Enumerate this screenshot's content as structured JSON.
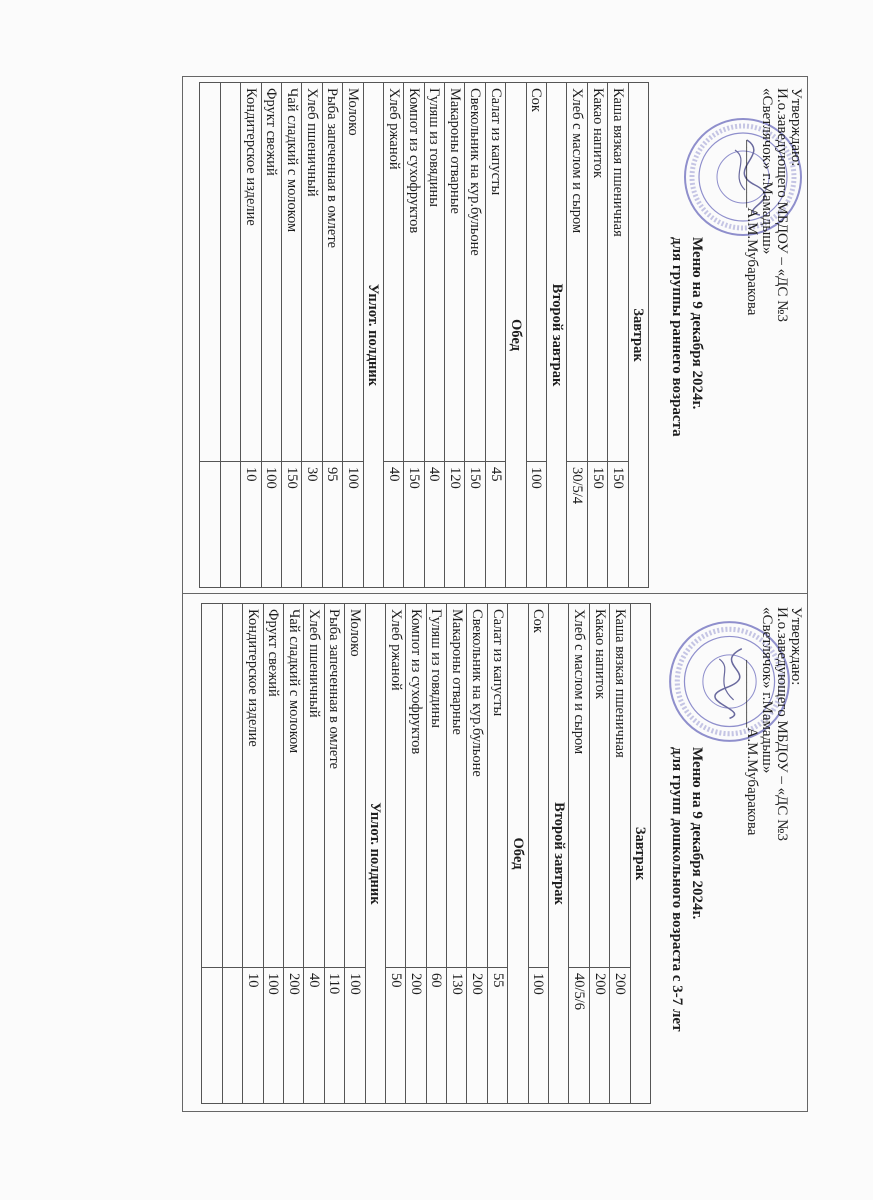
{
  "menus": [
    {
      "approval": [
        "Утверждаю:",
        "И.о.заведующего МБДОУ – «ДС №3",
        "«Светлячок» г.Мамадыш»",
        "_________А.М.Мубаракова"
      ],
      "title": "Меню на  9 декабря 2024г.",
      "subtitle": "для группы раннего возраста",
      "stamp_color": "#6b6bbd",
      "rows": [
        {
          "section": "Завтрак"
        },
        {
          "name": "Каша вязкая пшеничная",
          "value": "150"
        },
        {
          "name": "Какао напиток",
          "value": "150"
        },
        {
          "name": "Хлеб с маслом и сыром",
          "value": "30/5/4"
        },
        {
          "section": "Второй завтрак"
        },
        {
          "name": "Сок",
          "value": "100"
        },
        {
          "section": "Обед"
        },
        {
          "name": "Салат из капусты",
          "value": "45"
        },
        {
          "name": "Свекольник на кур.бульоне",
          "value": "150"
        },
        {
          "name": "Макароны отварные",
          "value": "120"
        },
        {
          "name": "Гуляш из говядины",
          "value": "40"
        },
        {
          "name": "Компот из сухофруктов",
          "value": "150"
        },
        {
          "name": "Хлеб ржаной",
          "value": "40"
        },
        {
          "section": "Уплот. полдник"
        },
        {
          "name": "Молоко",
          "value": "100"
        },
        {
          "name": "Рыба запеченная в омлете",
          "value": "95"
        },
        {
          "name": "Хлеб пшеничный",
          "value": "30"
        },
        {
          "name": "Чай сладкий с молоком",
          "value": "150"
        },
        {
          "name": "Фрукт свежий",
          "value": "100"
        },
        {
          "name": "Кондитерское изделие",
          "value": "10"
        },
        {
          "name": "",
          "value": ""
        },
        {
          "name": "",
          "value": ""
        }
      ]
    },
    {
      "approval": [
        "Утверждаю:",
        "И.о.заведующего МБДОУ – «ДС №3",
        "«Светлячок» г.Мамадыш»",
        "_________А.М.Мубаракова"
      ],
      "title": "Меню на  9 декабря 2024г.",
      "subtitle": "для групп дошкольного возраста с 3-7 лет",
      "stamp_color": "#6b6bbd",
      "rows": [
        {
          "section": "Завтрак"
        },
        {
          "name": "Каша вязкая пшеничная",
          "value": "200"
        },
        {
          "name": "Какао напиток",
          "value": "200"
        },
        {
          "name": "Хлеб с маслом и сыром",
          "value": "40/5/6"
        },
        {
          "section": "Второй завтрак"
        },
        {
          "name": "Сок",
          "value": "100"
        },
        {
          "section": "Обед"
        },
        {
          "name": "Салат из капусты",
          "value": "55"
        },
        {
          "name": "Свекольник на кур.бульоне",
          "value": "200"
        },
        {
          "name": "Макароны отварные",
          "value": "130"
        },
        {
          "name": "Гуляш из говядины",
          "value": "60"
        },
        {
          "name": "Компот из сухофруктов",
          "value": "200"
        },
        {
          "name": "Хлеб ржаной",
          "value": "50"
        },
        {
          "section": "Уплот. полдник"
        },
        {
          "name": "Молоко",
          "value": "100"
        },
        {
          "name": "Рыба запеченная в омлете",
          "value": "110"
        },
        {
          "name": "Хлеб пшеничный",
          "value": "40"
        },
        {
          "name": "Чай сладкий с молоком",
          "value": "200"
        },
        {
          "name": "Фрукт свежий",
          "value": "100"
        },
        {
          "name": "Кондитерское изделие",
          "value": "10"
        },
        {
          "name": "",
          "value": ""
        },
        {
          "name": "",
          "value": ""
        }
      ]
    }
  ]
}
